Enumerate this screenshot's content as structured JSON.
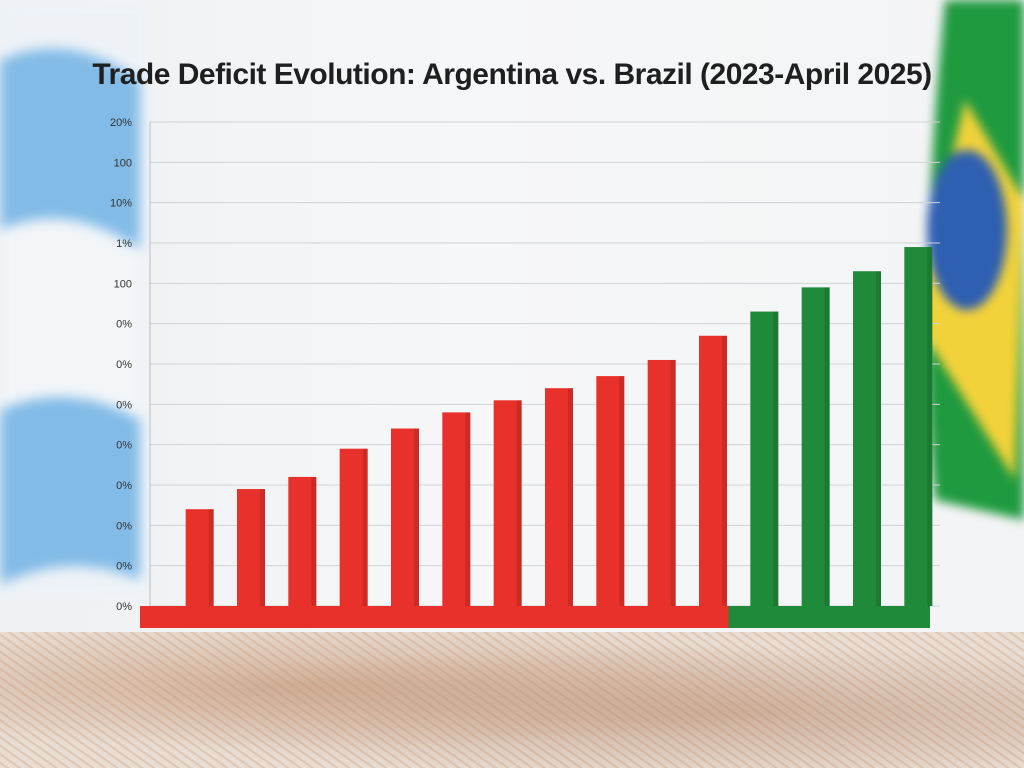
{
  "chart_data": {
    "type": "bar",
    "title": "Trade Deficit Evolution: Argentina vs. Brazil (2023-April 2025)",
    "xlabel": "",
    "ylabel": "",
    "y_tick_labels": [
      "0%",
      "0%",
      "0%",
      "0%",
      "0%",
      "0%",
      "0%",
      "0%",
      "100",
      "1%",
      "10%",
      "100",
      "20%"
    ],
    "grid": true,
    "legend": "none",
    "ylim": [
      0,
      12
    ],
    "series": [
      {
        "color": "#e8312a",
        "values": [
          2.4,
          2.9,
          3.2,
          3.9,
          4.4,
          4.8,
          5.1,
          5.4,
          5.7,
          6.1,
          6.7
        ]
      },
      {
        "color": "#1f8a3a",
        "values": [
          7.3,
          7.9,
          8.3,
          8.9
        ]
      }
    ]
  },
  "colors": {
    "argentina_blue": "#6fb2e6",
    "brazil_green": "#1f9a3f",
    "brazil_yellow": "#f2d23a",
    "brazil_blue": "#2e5fb0"
  }
}
